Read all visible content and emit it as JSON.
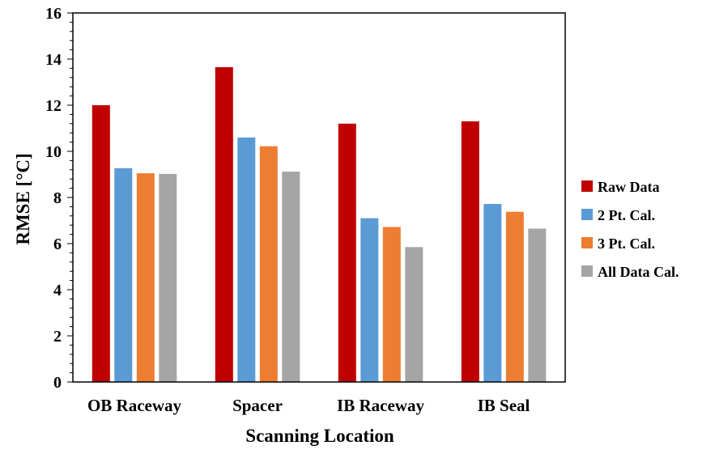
{
  "chart_data": {
    "type": "bar",
    "title": "",
    "xlabel": "Scanning Location",
    "ylabel": "RMSE [°C]",
    "ylim": [
      0,
      16
    ],
    "yticks": [
      0,
      2,
      4,
      6,
      8,
      10,
      12,
      14,
      16
    ],
    "grid": false,
    "legend_position": "right",
    "categories": [
      "OB Raceway",
      "Spacer",
      "IB Raceway",
      "IB Seal"
    ],
    "series": [
      {
        "name": "Raw Data",
        "color": "#c00000",
        "values": [
          12.0,
          13.65,
          11.2,
          11.3
        ]
      },
      {
        "name": "2 Pt. Cal.",
        "color": "#5b9bd5",
        "values": [
          9.27,
          10.6,
          7.1,
          7.72
        ]
      },
      {
        "name": "3 Pt. Cal.",
        "color": "#ed7d31",
        "values": [
          9.05,
          10.22,
          6.72,
          7.38
        ]
      },
      {
        "name": "All Data Cal.",
        "color": "#a5a5a5",
        "values": [
          9.02,
          9.12,
          5.85,
          6.65
        ]
      }
    ]
  }
}
